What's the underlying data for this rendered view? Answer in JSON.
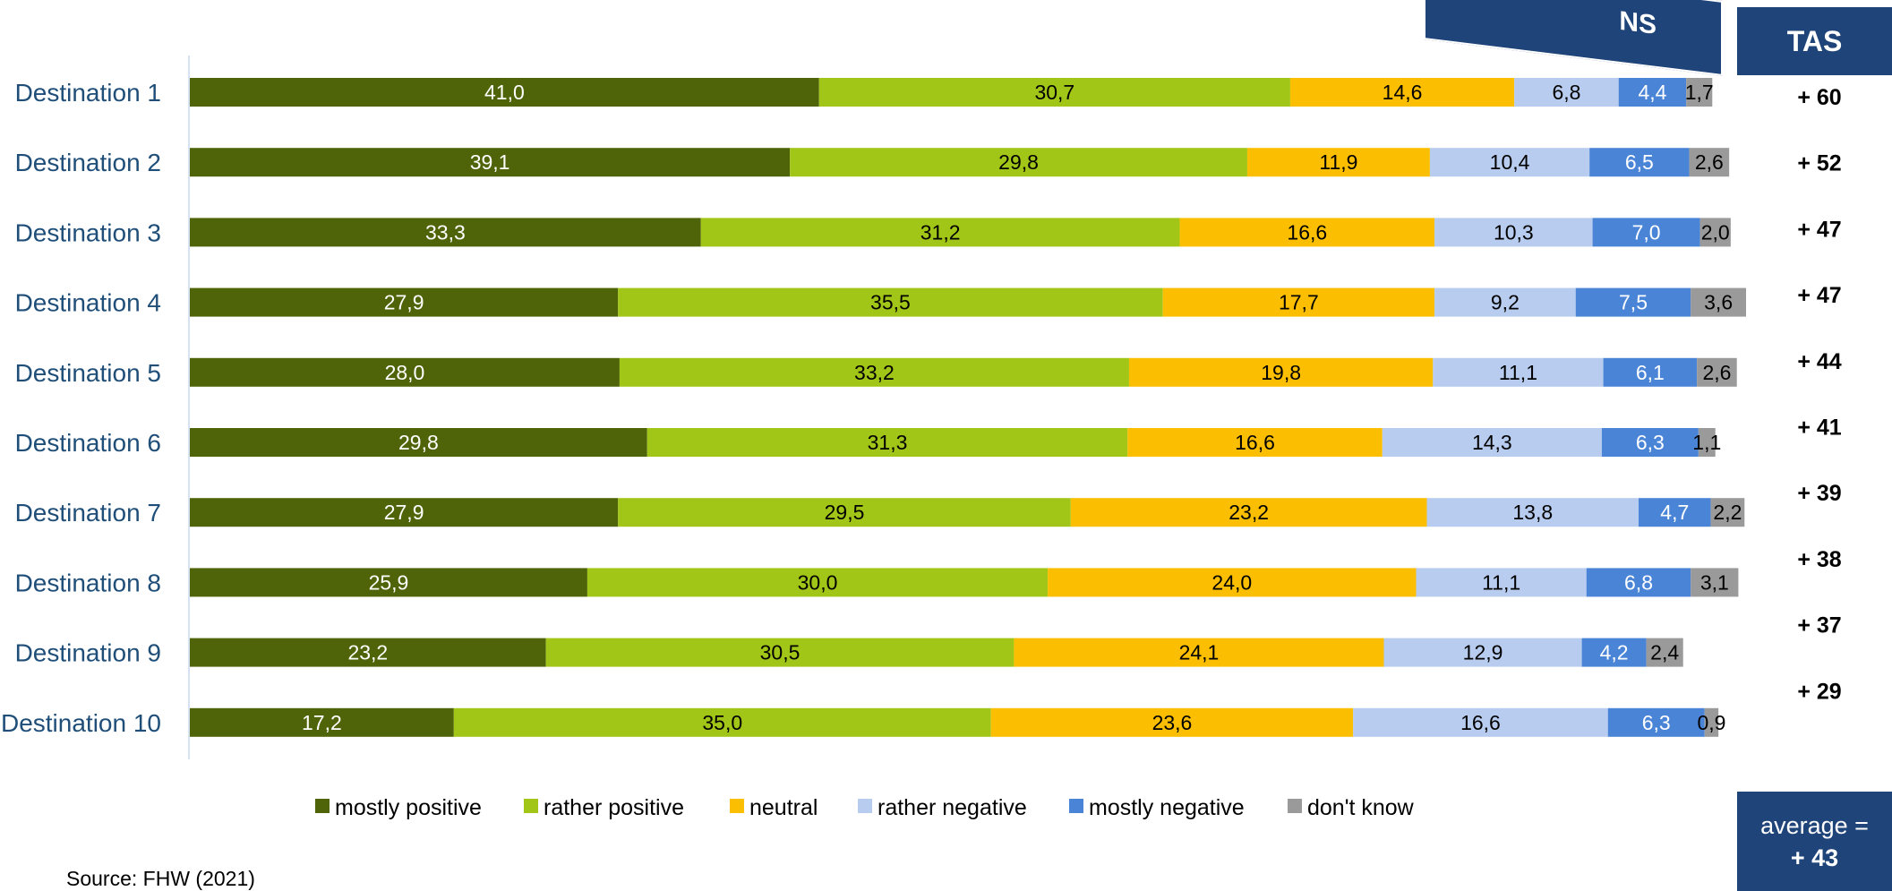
{
  "banner_text": "NS",
  "tas": {
    "header": "TAS",
    "values": [
      "+ 60",
      "+ 52",
      "+ 47",
      "+ 47",
      "+ 44",
      "+ 41",
      "+ 39",
      "+ 38",
      "+ 37",
      "+ 29"
    ]
  },
  "average": {
    "label": "average =",
    "value": "+ 43"
  },
  "source": "Source: FHW (2021)",
  "chart_data": {
    "type": "bar",
    "orientation": "horizontal",
    "stacked": true,
    "categories": [
      "Destination 1",
      "Destination 2",
      "Destination 3",
      "Destination 4",
      "Destination 5",
      "Destination 6",
      "Destination 7",
      "Destination 8",
      "Destination 9",
      "Destination 10"
    ],
    "series": [
      {
        "name": "mostly positive",
        "color": "#4f6408",
        "label_color": "#ffffff",
        "values": [
          41.0,
          39.1,
          33.3,
          27.9,
          28.0,
          29.8,
          27.9,
          25.9,
          23.2,
          17.2
        ],
        "labels": [
          "41,0",
          "39,1",
          "33,3",
          "27,9",
          "28,0",
          "29,8",
          "27,9",
          "25,9",
          "23,2",
          "17,2"
        ]
      },
      {
        "name": "rather positive",
        "color": "#a2c617",
        "label_color": "#000000",
        "values": [
          30.7,
          29.8,
          31.2,
          35.5,
          33.2,
          31.3,
          29.5,
          30.0,
          30.5,
          35.0
        ],
        "labels": [
          "30,7",
          "29,8",
          "31,2",
          "35,5",
          "33,2",
          "31,3",
          "29,5",
          "30,0",
          "30,5",
          "35,0"
        ]
      },
      {
        "name": "neutral",
        "color": "#fbbe00",
        "label_color": "#000000",
        "values": [
          14.6,
          11.9,
          16.6,
          17.7,
          19.8,
          16.6,
          23.2,
          24.0,
          24.1,
          23.6
        ],
        "labels": [
          "14,6",
          "11,9",
          "16,6",
          "17,7",
          "19,8",
          "16,6",
          "23,2",
          "24,0",
          "24,1",
          "23,6"
        ]
      },
      {
        "name": "rather negative",
        "color": "#b7ccee",
        "label_color": "#000000",
        "values": [
          6.8,
          10.4,
          10.3,
          9.2,
          11.1,
          14.3,
          13.8,
          11.1,
          12.9,
          16.6
        ],
        "labels": [
          "6,8",
          "10,4",
          "10,3",
          "9,2",
          "11,1",
          "14,3",
          "13,8",
          "11,1",
          "12,9",
          "16,6"
        ]
      },
      {
        "name": "mostly negative",
        "color": "#4a84d7",
        "label_color": "#ffffff",
        "values": [
          4.4,
          6.5,
          7.0,
          7.5,
          6.1,
          6.3,
          4.7,
          6.8,
          4.2,
          6.3
        ],
        "labels": [
          "4,4",
          "6,5",
          "7,0",
          "7,5",
          "6,1",
          "6,3",
          "4,7",
          "6,8",
          "4,2",
          "6,3"
        ]
      },
      {
        "name": "don't know",
        "color": "#9a9a9a",
        "label_color": "#000000",
        "values": [
          1.7,
          2.6,
          2.0,
          3.6,
          2.6,
          1.1,
          2.2,
          3.1,
          2.4,
          0.9
        ],
        "labels": [
          "1,7",
          "2,6",
          "2,0",
          "3,6",
          "2,6",
          "1,1",
          "2,2",
          "3,1",
          "2,4",
          "0,9"
        ]
      }
    ],
    "xlim": [
      0,
      100
    ],
    "grid": false,
    "legend_position": "bottom"
  }
}
